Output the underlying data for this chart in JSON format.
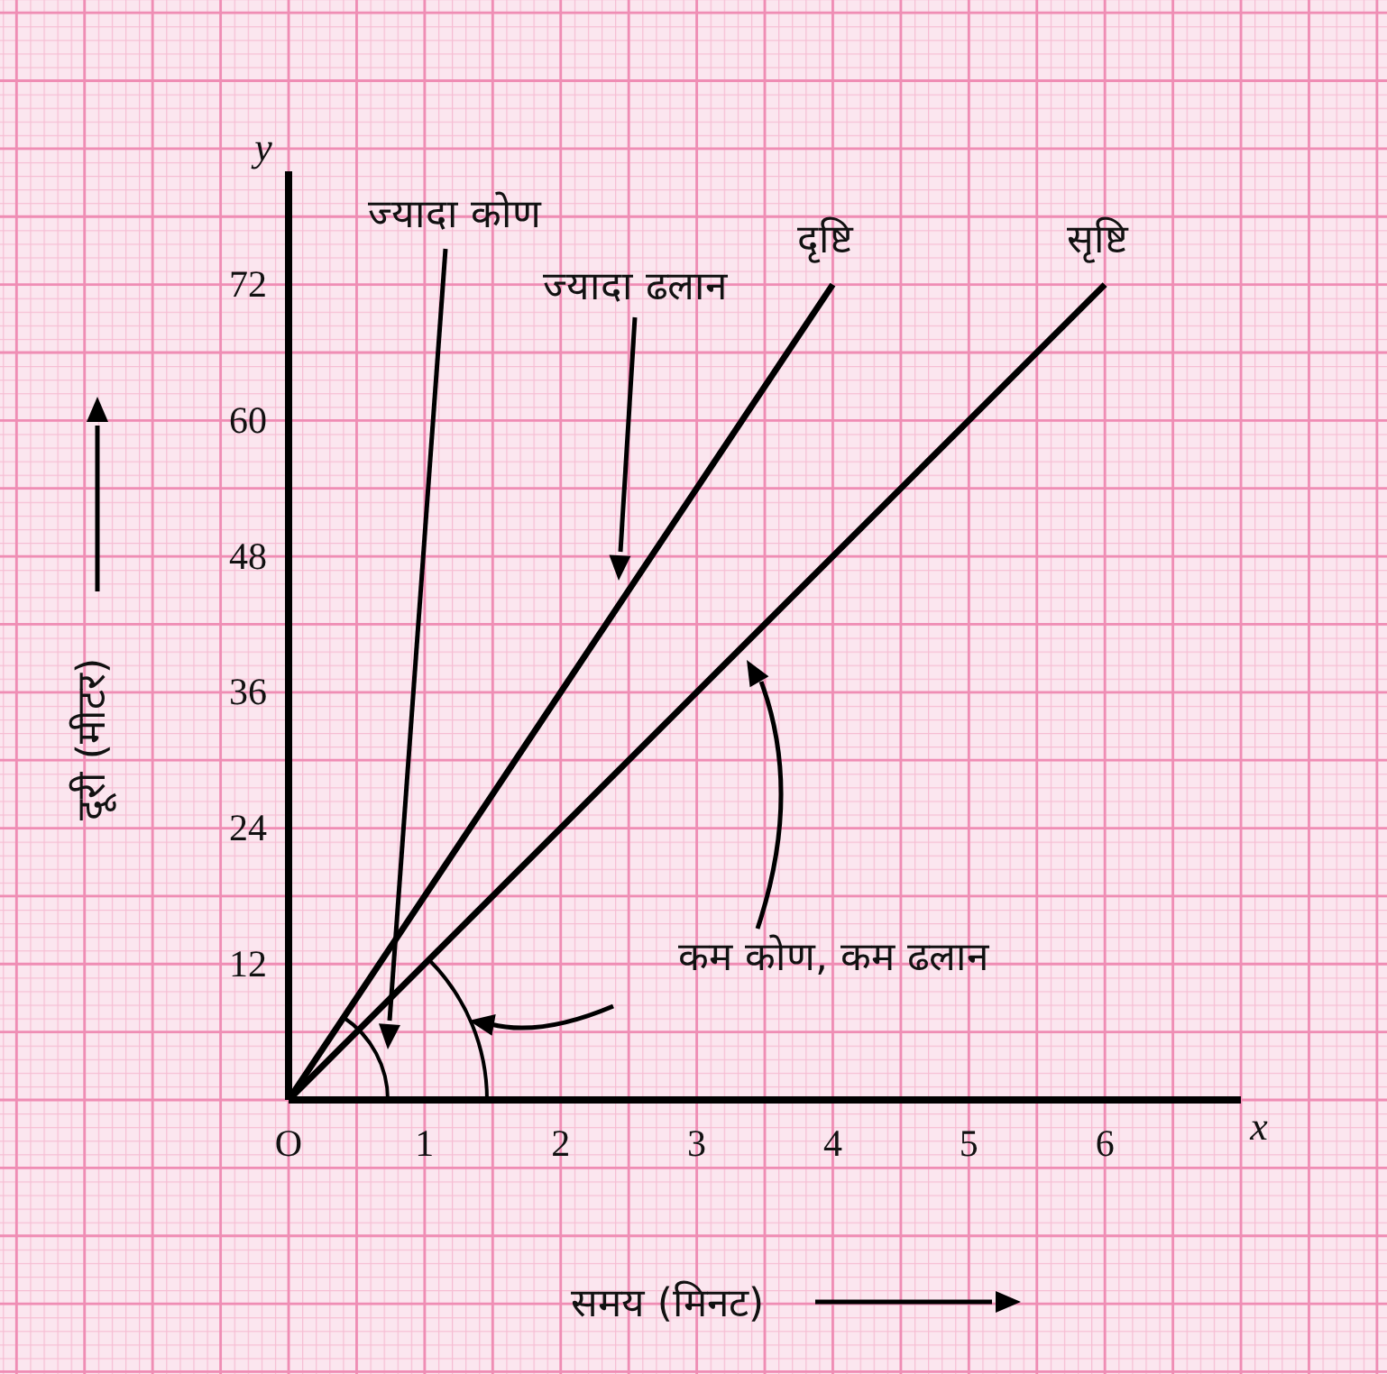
{
  "chart_data": {
    "type": "line",
    "xlabel": "समय (मिनट)",
    "ylabel": "दूरी (मीटर)",
    "series": [
      {
        "name": "दृष्टि",
        "color": "#000000",
        "x": [
          0,
          4
        ],
        "values": [
          0,
          72
        ]
      },
      {
        "name": "सृष्टि",
        "color": "#000000",
        "x": [
          0,
          6
        ],
        "values": [
          0,
          72
        ]
      }
    ],
    "xlim": [
      0,
      7
    ],
    "ylim": [
      0,
      82
    ],
    "xticks": [
      {
        "value": 0,
        "label": "O"
      },
      1,
      2,
      3,
      4,
      5,
      6
    ],
    "yticks": [
      12,
      24,
      36,
      48,
      60,
      72
    ],
    "grid": true,
    "legend": false,
    "marker": "none",
    "line_style": "solid",
    "annotations": [
      "ज्यादा कोण",
      "ज्यादा ढलान",
      "कम कोण, कम ढलान",
      "x",
      "y"
    ]
  }
}
